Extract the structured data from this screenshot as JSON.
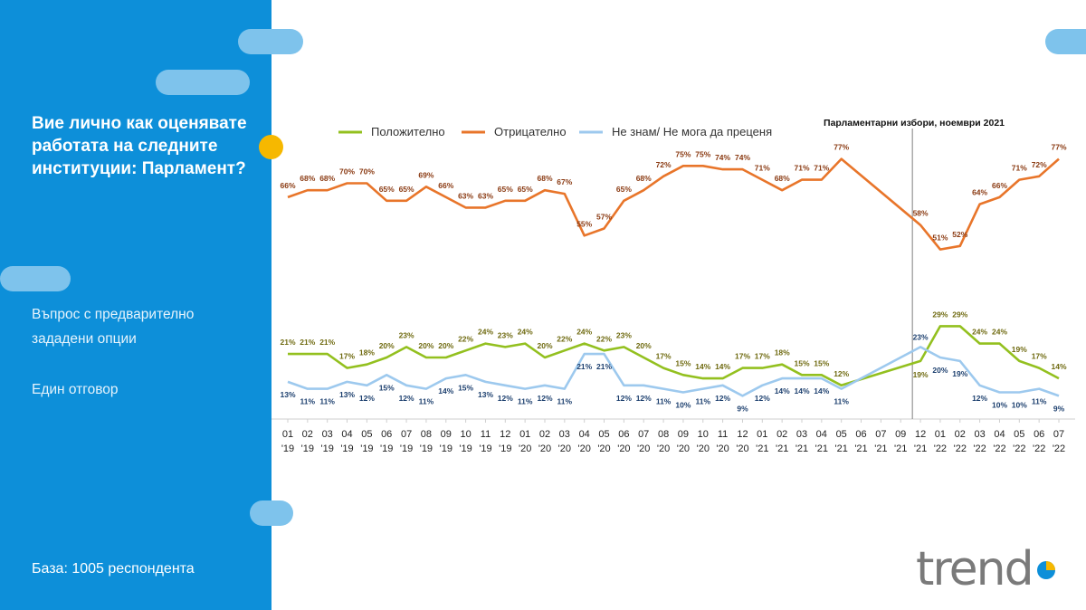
{
  "sidebar": {
    "question": "Вие лично как оценявате работата на следните институции: Парламент?",
    "note1": "Въпрос с предварително зададени опции",
    "note2": "Един отговор",
    "base": "База:  1005 респондента"
  },
  "logo": {
    "text": "trend",
    "icon": "trend-logo-pie"
  },
  "colors": {
    "sidebar": "#0d8fd9",
    "accent": "#f6b800",
    "positive": "#93c01f",
    "negative": "#e8752a",
    "dontknow": "#9dc9ee"
  },
  "chart_data": {
    "type": "line",
    "annotation": "Парламентарни избори, ноември 2021",
    "annotation_after_index": 32,
    "categories": [
      "01 '19",
      "02 '19",
      "03 '19",
      "04 '19",
      "05 '19",
      "06 '19",
      "07 '19",
      "08 '19",
      "09 '19",
      "10 '19",
      "11 '19",
      "12 '19",
      "01 '20",
      "02 '20",
      "03 '20",
      "04 '20",
      "05 '20",
      "06 '20",
      "07 '20",
      "08 '20",
      "09 '20",
      "10 '20",
      "11 '20",
      "12 '20",
      "01 '21",
      "02 '21",
      "03 '21",
      "04 '21",
      "05 '21",
      "06 '21",
      "07 '21",
      "09 '21",
      "12 '21",
      "01 '22",
      "02 '22",
      "03 '22",
      "04 '22",
      "05 '22",
      "06 '22",
      "07 '22"
    ],
    "tick_month": [
      "01",
      "02",
      "03",
      "04",
      "05",
      "06",
      "07",
      "08",
      "09",
      "10",
      "11",
      "12",
      "01",
      "02",
      "03",
      "04",
      "05",
      "06",
      "07",
      "08",
      "09",
      "10",
      "11",
      "12",
      "01",
      "02",
      "03",
      "04",
      "05",
      "06",
      "07",
      "09",
      "12",
      "01",
      "02",
      "03",
      "04",
      "05",
      "06",
      "07"
    ],
    "tick_year": [
      "'19",
      "'19",
      "'19",
      "'19",
      "'19",
      "'19",
      "'19",
      "'19",
      "'19",
      "'19",
      "'19",
      "'19",
      "'20",
      "'20",
      "'20",
      "'20",
      "'20",
      "'20",
      "'20",
      "'20",
      "'20",
      "'20",
      "'20",
      "'20",
      "'21",
      "'21",
      "'21",
      "'21",
      "'21",
      "'21",
      "'21",
      "'21",
      "'21",
      "'22",
      "'22",
      "'22",
      "'22",
      "'22",
      "'22",
      "'22"
    ],
    "series": [
      {
        "name": "Положително",
        "color": "#93c01f",
        "values": [
          21,
          21,
          21,
          17,
          18,
          20,
          23,
          20,
          20,
          22,
          24,
          23,
          24,
          20,
          22,
          24,
          22,
          23,
          20,
          17,
          15,
          14,
          14,
          17,
          17,
          18,
          15,
          15,
          12,
          null,
          null,
          null,
          19,
          29,
          29,
          24,
          24,
          19,
          17,
          14
        ],
        "labels": [
          "21%",
          "21%",
          "21%",
          "17%",
          "18%",
          "20%",
          "23%",
          "20%",
          "20%",
          "22%",
          "24%",
          "23%",
          "24%",
          "20%",
          "22%",
          "24%",
          "22%",
          "23%",
          "20%",
          "17%",
          "15%",
          "14%",
          "14%",
          "17%",
          "17%",
          "18%",
          "15%",
          "15%",
          "12%",
          "",
          "",
          "",
          "19%",
          "29%",
          "29%",
          "24%",
          "24%",
          "19%",
          "17%",
          "14%"
        ]
      },
      {
        "name": "Отрицателно",
        "color": "#e8752a",
        "values": [
          66,
          68,
          68,
          70,
          70,
          65,
          65,
          69,
          66,
          63,
          63,
          65,
          65,
          68,
          67,
          55,
          57,
          65,
          68,
          72,
          75,
          75,
          74,
          74,
          71,
          68,
          71,
          71,
          77,
          null,
          null,
          null,
          58,
          51,
          52,
          64,
          66,
          71,
          72,
          77
        ],
        "labels": [
          "66%",
          "68%",
          "68%",
          "70%",
          "70%",
          "65%",
          "65%",
          "69%",
          "66%",
          "63%",
          "63%",
          "65%",
          "65%",
          "68%",
          "67%",
          "55%",
          "57%",
          "65%",
          "68%",
          "72%",
          "75%",
          "75%",
          "74%",
          "74%",
          "71%",
          "68%",
          "71%",
          "71%",
          "77%",
          "",
          "",
          "",
          "58%",
          "51%",
          "52%",
          "64%",
          "66%",
          "71%",
          "72%",
          "77%"
        ]
      },
      {
        "name": "Не знам/ Не мога да преценя",
        "color": "#9dc9ee",
        "values": [
          13,
          11,
          11,
          13,
          12,
          15,
          12,
          11,
          14,
          15,
          13,
          12,
          11,
          12,
          11,
          21,
          21,
          12,
          12,
          11,
          10,
          11,
          12,
          9,
          12,
          14,
          14,
          14,
          11,
          null,
          null,
          null,
          23,
          20,
          19,
          12,
          10,
          10,
          11,
          9
        ],
        "labels": [
          "13%",
          "11%",
          "11%",
          "13%",
          "12%",
          "15%",
          "12%",
          "11%",
          "14%",
          "15%",
          "13%",
          "12%",
          "11%",
          "12%",
          "11%",
          "21%",
          "21%",
          "12%",
          "12%",
          "11%",
          "10%",
          "11%",
          "12%",
          "9%",
          "12%",
          "14%",
          "14%",
          "14%",
          "11%",
          "",
          "",
          "",
          "23%",
          "20%",
          "19%",
          "12%",
          "10%",
          "10%",
          "11%",
          "9%"
        ]
      }
    ]
  }
}
